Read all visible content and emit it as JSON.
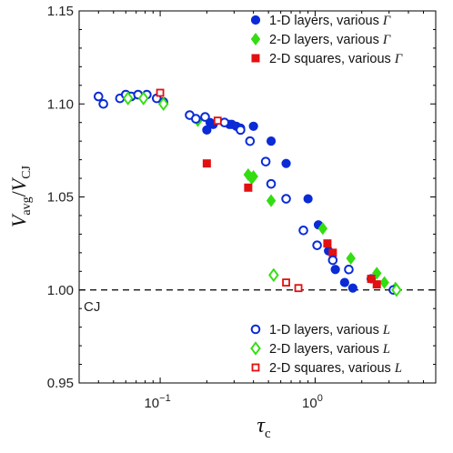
{
  "chart_data": {
    "type": "scatter",
    "xscale": "log",
    "xlim": [
      0.03,
      6
    ],
    "ylim": [
      0.95,
      1.15
    ],
    "yticks": [
      0.95,
      1.0,
      1.05,
      1.1,
      1.15
    ],
    "ytick_labels": [
      "0.95",
      "1.00",
      "1.05",
      "1.10",
      "1.15"
    ],
    "xtick_labels": [
      {
        "value": 0.1,
        "base": "10",
        "exp": "−1"
      },
      {
        "value": 1,
        "base": "10",
        "exp": "0"
      }
    ],
    "xlabel": {
      "main": "τ",
      "sub": "c"
    },
    "ylabel": {
      "v1": "V",
      "s1": "avg",
      "slash": "/",
      "v2": "V",
      "s2": "CJ"
    },
    "reference_line": {
      "y": 1.0,
      "label": "CJ",
      "style": "dashed"
    },
    "grid": false,
    "legend_top": {
      "placement": "top-right",
      "entries": [
        {
          "label": "1-D layers, various ",
          "var": "Γ",
          "series": 0
        },
        {
          "label": "2-D layers, various ",
          "var": "Γ",
          "series": 1
        },
        {
          "label": "2-D squares, various ",
          "var": "Γ",
          "series": 2
        }
      ]
    },
    "legend_bottom": {
      "placement": "bottom-right",
      "entries": [
        {
          "label": "1-D layers, various ",
          "var": "L",
          "series": 3
        },
        {
          "label": "2-D layers, various ",
          "var": "L",
          "series": 4
        },
        {
          "label": "2-D squares, various ",
          "var": "L",
          "series": 5
        }
      ]
    },
    "series": [
      {
        "marker": "circle",
        "filled": true,
        "color": "#0a2bd6",
        "points": [
          [
            0.2,
            1.086
          ],
          [
            0.21,
            1.09
          ],
          [
            0.22,
            1.089
          ],
          [
            0.28,
            1.089
          ],
          [
            0.29,
            1.089
          ],
          [
            0.31,
            1.088
          ],
          [
            0.33,
            1.087
          ],
          [
            0.4,
            1.088
          ],
          [
            0.52,
            1.08
          ],
          [
            0.65,
            1.068
          ],
          [
            0.9,
            1.049
          ],
          [
            1.05,
            1.035
          ],
          [
            1.22,
            1.021
          ],
          [
            1.35,
            1.011
          ],
          [
            1.55,
            1.004
          ],
          [
            1.75,
            1.001
          ],
          [
            2.3,
            1.006
          ]
        ]
      },
      {
        "marker": "diamond",
        "filled": true,
        "color": "#33dd11",
        "points": [
          [
            0.175,
            1.091
          ],
          [
            0.37,
            1.062
          ],
          [
            0.39,
            1.06
          ],
          [
            0.4,
            1.061
          ],
          [
            0.52,
            1.048
          ],
          [
            1.12,
            1.033
          ],
          [
            1.7,
            1.017
          ],
          [
            2.5,
            1.009
          ],
          [
            2.8,
            1.004
          ],
          [
            3.3,
            1.001
          ]
        ]
      },
      {
        "marker": "square",
        "filled": true,
        "color": "#e21010",
        "points": [
          [
            0.2,
            1.068
          ],
          [
            0.37,
            1.055
          ],
          [
            1.2,
            1.025
          ],
          [
            1.3,
            1.02
          ],
          [
            2.3,
            1.006
          ],
          [
            2.5,
            1.003
          ]
        ]
      },
      {
        "marker": "circle",
        "filled": false,
        "color": "#0a2bd6",
        "points": [
          [
            0.04,
            1.104
          ],
          [
            0.043,
            1.1
          ],
          [
            0.055,
            1.103
          ],
          [
            0.06,
            1.105
          ],
          [
            0.065,
            1.104
          ],
          [
            0.072,
            1.105
          ],
          [
            0.082,
            1.105
          ],
          [
            0.095,
            1.103
          ],
          [
            0.105,
            1.101
          ],
          [
            0.155,
            1.094
          ],
          [
            0.17,
            1.092
          ],
          [
            0.195,
            1.093
          ],
          [
            0.26,
            1.09
          ],
          [
            0.33,
            1.086
          ],
          [
            0.38,
            1.08
          ],
          [
            0.48,
            1.069
          ],
          [
            0.52,
            1.057
          ],
          [
            0.65,
            1.049
          ],
          [
            0.84,
            1.032
          ],
          [
            1.03,
            1.024
          ],
          [
            1.3,
            1.016
          ],
          [
            1.65,
            1.011
          ],
          [
            3.2,
            1.0
          ]
        ]
      },
      {
        "marker": "diamond",
        "filled": false,
        "color": "#33dd11",
        "points": [
          [
            0.062,
            1.103
          ],
          [
            0.078,
            1.103
          ],
          [
            0.105,
            1.1
          ],
          [
            0.54,
            1.008
          ],
          [
            3.35,
            1.0
          ]
        ]
      },
      {
        "marker": "square",
        "filled": false,
        "color": "#e21010",
        "points": [
          [
            0.1,
            1.106
          ],
          [
            0.235,
            1.091
          ],
          [
            0.65,
            1.004
          ],
          [
            0.78,
            1.001
          ]
        ]
      }
    ]
  }
}
